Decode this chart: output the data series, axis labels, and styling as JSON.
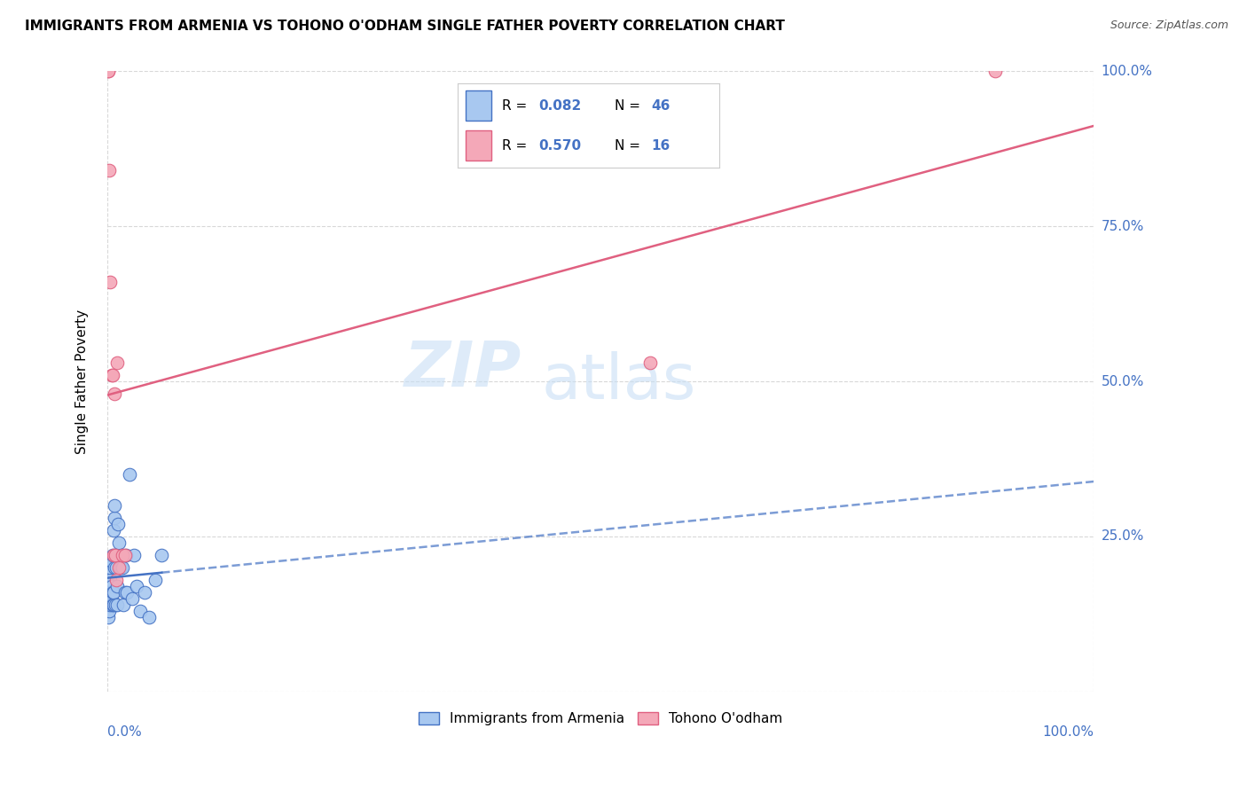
{
  "title": "IMMIGRANTS FROM ARMENIA VS TOHONO O'ODHAM SINGLE FATHER POVERTY CORRELATION CHART",
  "source": "Source: ZipAtlas.com",
  "ylabel": "Single Father Poverty",
  "legend_label1": "Immigrants from Armenia",
  "legend_label2": "Tohono O'odham",
  "R1": 0.082,
  "N1": 46,
  "R2": 0.57,
  "N2": 16,
  "color_blue": "#A8C8F0",
  "color_pink": "#F4A8B8",
  "line_blue": "#4472C4",
  "line_pink": "#E06080",
  "background": "#FFFFFF",
  "grid_color": "#D8D8D8",
  "watermark_zip": "ZIP",
  "watermark_atlas": "atlas",
  "blue_scatter_x": [
    0.001,
    0.001,
    0.001,
    0.002,
    0.002,
    0.002,
    0.002,
    0.003,
    0.003,
    0.003,
    0.003,
    0.004,
    0.004,
    0.004,
    0.005,
    0.005,
    0.005,
    0.006,
    0.006,
    0.006,
    0.007,
    0.007,
    0.007,
    0.008,
    0.008,
    0.009,
    0.01,
    0.01,
    0.011,
    0.012,
    0.013,
    0.014,
    0.015,
    0.016,
    0.018,
    0.019,
    0.02,
    0.022,
    0.025,
    0.027,
    0.03,
    0.033,
    0.038,
    0.042,
    0.048,
    0.055
  ],
  "blue_scatter_y": [
    0.12,
    0.14,
    0.16,
    0.13,
    0.15,
    0.17,
    0.19,
    0.14,
    0.16,
    0.18,
    0.2,
    0.15,
    0.17,
    0.21,
    0.14,
    0.16,
    0.22,
    0.14,
    0.16,
    0.26,
    0.28,
    0.2,
    0.3,
    0.14,
    0.22,
    0.2,
    0.14,
    0.17,
    0.27,
    0.24,
    0.2,
    0.22,
    0.2,
    0.14,
    0.16,
    0.22,
    0.16,
    0.35,
    0.15,
    0.22,
    0.17,
    0.13,
    0.16,
    0.12,
    0.18,
    0.22
  ],
  "pink_scatter_x": [
    0.001,
    0.001,
    0.002,
    0.003,
    0.004,
    0.005,
    0.006,
    0.007,
    0.008,
    0.009,
    0.01,
    0.012,
    0.015,
    0.018,
    0.55,
    0.9
  ],
  "pink_scatter_y": [
    1.0,
    1.0,
    0.84,
    0.66,
    0.51,
    0.51,
    0.22,
    0.48,
    0.22,
    0.18,
    0.53,
    0.2,
    0.22,
    0.22,
    0.53,
    1.0
  ],
  "xlim": [
    0.0,
    1.0
  ],
  "ylim": [
    0.0,
    1.0
  ],
  "ytick_positions": [
    0.0,
    0.25,
    0.5,
    0.75,
    1.0
  ],
  "right_tick_labels": [
    "",
    "25.0%",
    "50.0%",
    "75.0%",
    "100.0%"
  ],
  "text_color_blue": "#4472C4",
  "title_fontsize": 11,
  "axis_label_fontsize": 11,
  "tick_fontsize": 11
}
